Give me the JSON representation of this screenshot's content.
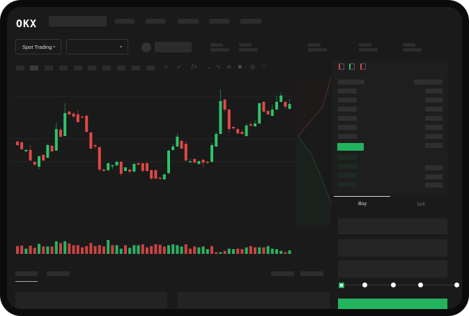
{
  "header": {
    "logo": "OKX"
  },
  "market": {
    "mode_label": "Spot Trading",
    "mode_chevron": "⌄",
    "pair_chevron": "⌄"
  },
  "toolbar": {
    "icons": [
      "line-icon",
      "candle-icon",
      "indicator-icon",
      "chevron-down-icon",
      "wave-icon",
      "ruler-icon",
      "camera-icon",
      "target-icon",
      "fullscreen-icon"
    ]
  },
  "orderbook": {
    "view_icons": [
      "both-sides-icon",
      "bids-only-icon",
      "asks-only-icon"
    ]
  },
  "trade": {
    "buy_tab": "Buy",
    "sell_tab": "Sell",
    "slider_percent": 0
  },
  "colors": {
    "up": "#2ec26a",
    "down": "#e04848",
    "buy_button": "#23b35e",
    "background": "#1a1a1a"
  },
  "chart_data": {
    "type": "candlestick",
    "ohlc": [
      [
        97,
        92,
        98,
        91
      ],
      [
        96,
        86,
        97,
        85
      ],
      [
        83,
        85,
        86,
        83
      ],
      [
        85,
        70,
        92,
        69
      ],
      [
        68,
        64,
        69,
        62
      ],
      [
        61,
        76,
        77,
        57
      ],
      [
        78,
        70,
        79,
        69
      ],
      [
        74,
        92,
        94,
        73
      ],
      [
        91,
        83,
        92,
        82
      ],
      [
        84,
        115,
        124,
        84
      ],
      [
        114,
        104,
        117,
        103
      ],
      [
        105,
        138,
        152,
        105
      ],
      [
        140,
        136,
        141,
        135
      ],
      [
        137,
        133,
        139,
        131
      ],
      [
        136,
        125,
        142,
        124
      ],
      [
        133,
        132,
        133,
        131
      ],
      [
        134,
        111,
        136,
        110
      ],
      [
        110,
        87,
        111,
        86
      ],
      [
        92,
        90,
        93,
        87
      ],
      [
        89,
        57,
        90,
        54
      ],
      [
        57,
        55,
        58,
        54
      ],
      [
        56,
        66,
        67,
        55
      ],
      [
        62,
        63,
        64,
        58
      ],
      [
        63,
        68,
        70,
        62
      ],
      [
        68,
        51,
        69,
        48
      ],
      [
        55,
        60,
        61,
        54
      ],
      [
        57,
        54,
        58,
        51
      ],
      [
        54,
        65,
        66,
        53
      ],
      [
        66,
        64,
        67,
        63
      ],
      [
        66,
        55,
        67,
        53
      ],
      [
        66,
        55,
        68,
        54
      ],
      [
        56,
        44,
        57,
        42
      ],
      [
        56,
        44,
        58,
        44
      ],
      [
        45,
        44,
        47,
        43
      ],
      [
        43,
        50,
        51,
        42
      ],
      [
        52,
        84,
        86,
        50
      ],
      [
        85,
        90,
        94,
        84
      ],
      [
        90,
        104,
        109,
        89
      ],
      [
        98,
        87,
        99,
        86
      ],
      [
        94,
        70,
        98,
        68
      ],
      [
        68,
        69,
        72,
        66
      ],
      [
        72,
        67,
        73,
        66
      ],
      [
        65,
        69,
        70,
        64
      ],
      [
        71,
        67,
        72,
        60
      ],
      [
        68,
        67,
        70,
        65
      ],
      [
        68,
        92,
        95,
        67
      ],
      [
        90,
        108,
        111,
        89
      ],
      [
        108,
        155,
        172,
        107
      ],
      [
        157,
        143,
        159,
        140
      ],
      [
        143,
        115,
        144,
        110
      ],
      [
        118,
        116,
        119,
        114
      ],
      [
        115,
        109,
        116,
        107
      ],
      [
        111,
        108,
        114,
        107
      ],
      [
        105,
        120,
        123,
        104
      ],
      [
        122,
        120,
        126,
        119
      ],
      [
        119,
        123,
        128,
        118
      ],
      [
        123,
        152,
        153,
        122
      ],
      [
        154,
        140,
        155,
        139
      ],
      [
        141,
        136,
        142,
        135
      ],
      [
        134,
        143,
        150,
        133
      ],
      [
        143,
        154,
        162,
        142
      ],
      [
        154,
        163,
        167,
        153
      ],
      [
        154,
        147,
        155,
        144
      ],
      [
        144,
        151,
        158,
        143
      ]
    ],
    "ohlc_order": [
      "open",
      "close",
      "high",
      "low"
    ],
    "volume": [
      36,
      38,
      24,
      38,
      28,
      46,
      34,
      34,
      34,
      58,
      50,
      58,
      48,
      40,
      40,
      30,
      36,
      50,
      36,
      40,
      34,
      64,
      40,
      40,
      24,
      40,
      28,
      40,
      40,
      44,
      30,
      36,
      44,
      42,
      34,
      40,
      44,
      40,
      34,
      44,
      24,
      34,
      30,
      34,
      22,
      36,
      8,
      8,
      14,
      24,
      22,
      24,
      22,
      30,
      36,
      30,
      30,
      30,
      36,
      24,
      22,
      14,
      8,
      16
    ],
    "volume_up": [
      0,
      0,
      1,
      0,
      0,
      1,
      0,
      1,
      0,
      1,
      0,
      1,
      0,
      0,
      0,
      0,
      0,
      0,
      0,
      0,
      0,
      1,
      0,
      1,
      1,
      0,
      1,
      1,
      1,
      0,
      0,
      0,
      0,
      0,
      0,
      1,
      1,
      1,
      1,
      0,
      0,
      0,
      1,
      1,
      1,
      0,
      0,
      1,
      0,
      1,
      1,
      0,
      0,
      1,
      0,
      0,
      1,
      0,
      1,
      1,
      1,
      1,
      0,
      1
    ]
  }
}
